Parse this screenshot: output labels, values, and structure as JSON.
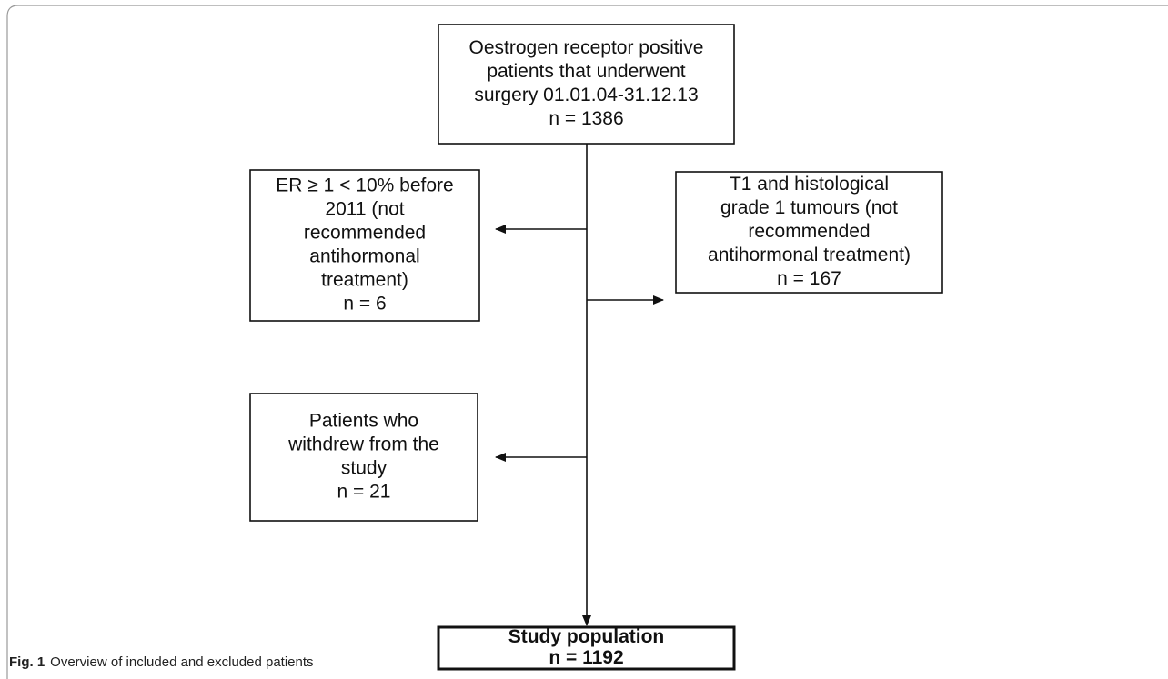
{
  "nodes": [
    {
      "lines": [
        "Oestrogen receptor positive",
        "patients that underwent",
        "surgery 01.01.04-31.12.13",
        "n = 1386"
      ]
    },
    {
      "lines": [
        "ER ≥ 1 < 10% before",
        "2011 (not",
        "recommended",
        "antihormonal",
        "treatment)",
        "n = 6"
      ]
    },
    {
      "lines": [
        "T1 and histological",
        "grade 1 tumours (not",
        "recommended",
        "antihormonal treatment)",
        "n = 167"
      ]
    },
    {
      "lines": [
        "Patients who",
        "withdrew from the",
        "study",
        "n = 21"
      ]
    },
    {
      "lines": [
        "Study population",
        "n = 1192"
      ]
    }
  ],
  "caption": {
    "label": "Fig. 1",
    "text": "Overview of included and excluded patients"
  }
}
